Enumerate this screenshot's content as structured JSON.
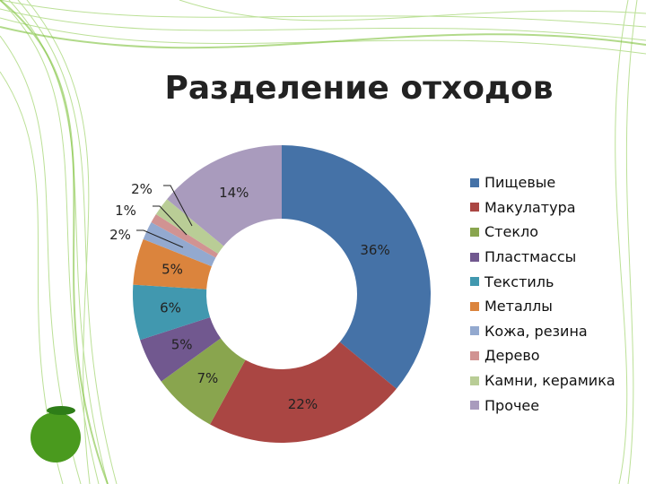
{
  "title": "Разделение отходов",
  "chart_data": {
    "type": "pie",
    "subtype": "donut",
    "title": "Разделение отходов",
    "categories": [
      "Пищевые",
      "Макулатура",
      "Стекло",
      "Пластмассы",
      "Текстиль",
      "Металлы",
      "Кожа, резина",
      "Дерево",
      "Камни, керамика",
      "Прочее"
    ],
    "values": [
      36,
      22,
      7,
      5,
      6,
      5,
      2,
      1,
      2,
      14
    ],
    "labels": [
      "36%",
      "22%",
      "7%",
      "5%",
      "6%",
      "5%",
      "2%",
      "1%",
      "2%",
      "14%"
    ],
    "colors": [
      "#4572a7",
      "#aa4643",
      "#89a54e",
      "#71588f",
      "#4198af",
      "#db843d",
      "#93a9cf",
      "#d19392",
      "#b9cd96",
      "#a99bbd"
    ],
    "legend_position": "right"
  },
  "legend": [
    {
      "label": "Пищевые",
      "color": "#4572a7"
    },
    {
      "label": "Макулатура",
      "color": "#aa4643"
    },
    {
      "label": "Стекло",
      "color": "#89a54e"
    },
    {
      "label": "Пластмассы",
      "color": "#71588f"
    },
    {
      "label": "Текстиль",
      "color": "#4198af"
    },
    {
      "label": "Металлы",
      "color": "#db843d"
    },
    {
      "label": "Кожа, резина",
      "color": "#93a9cf"
    },
    {
      "label": "Дерево",
      "color": "#d19392"
    },
    {
      "label": "Камни, керамика",
      "color": "#b9cd96"
    },
    {
      "label": "Прочее",
      "color": "#a99bbd"
    }
  ]
}
